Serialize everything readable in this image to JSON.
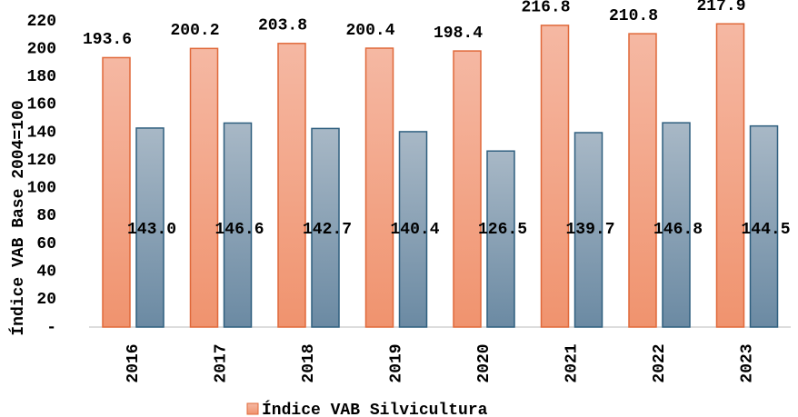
{
  "chart_data": {
    "type": "bar",
    "y_label": "Índice VAB Base 2004=100",
    "categories": [
      "2016",
      "2017",
      "2018",
      "2019",
      "2020",
      "2021",
      "2022",
      "2023"
    ],
    "series": [
      {
        "name": "Índice VAB Silvicultura",
        "color": "#f0936e",
        "values": [
          193.6,
          200.2,
          203.8,
          200.4,
          198.4,
          216.8,
          210.8,
          217.9
        ],
        "value_labels": [
          "193.6",
          "200.2",
          "203.8",
          "200.4",
          "198.4",
          "216.8",
          "210.8",
          "217.9"
        ]
      },
      {
        "color": "#6b8aa3",
        "values": [
          143.0,
          146.6,
          142.7,
          140.4,
          126.5,
          139.7,
          146.8,
          144.5
        ],
        "value_labels": [
          "143.0",
          "146.6",
          "142.7",
          "140.4",
          "126.5",
          "139.7",
          "146.8",
          "144.5"
        ]
      }
    ],
    "ylim": [
      0,
      220
    ],
    "yticks": [
      {
        "value": 0,
        "label": "-"
      },
      20,
      40,
      60,
      80,
      100,
      120,
      140,
      160,
      180,
      200,
      220
    ],
    "grid": false,
    "legend": "bottom"
  }
}
